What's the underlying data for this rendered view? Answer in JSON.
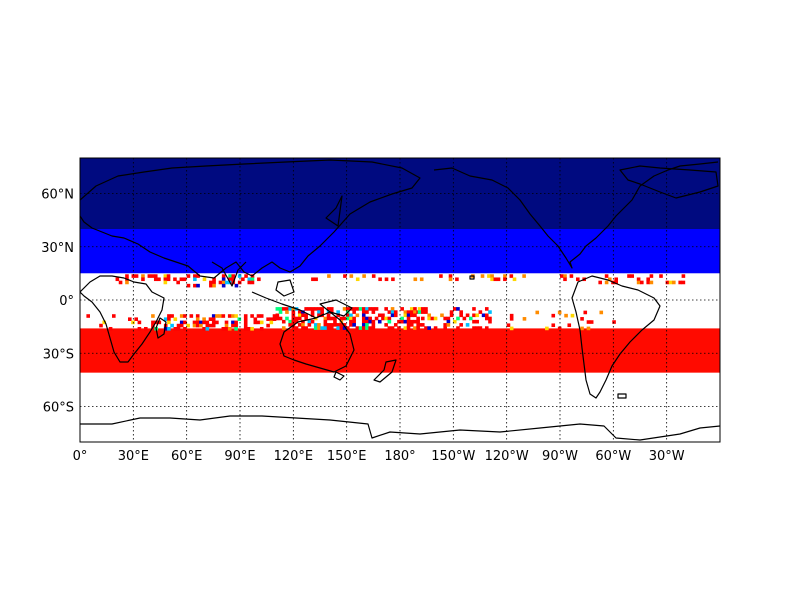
{
  "map": {
    "projection": "cylindrical",
    "lon_range": [
      0,
      360
    ],
    "lat_range": [
      -80,
      80
    ],
    "colors": {
      "polar_band": "#000a80",
      "mid_band": "#0000ff",
      "tropical_band": "#ffffff",
      "south_band": "#ff0a00",
      "coast": "#000000",
      "grid": "#000000",
      "scatter": [
        "#ff0000",
        "#ff8c00",
        "#ffd700",
        "#00bfff",
        "#0000cd",
        "#00ff7f"
      ]
    },
    "bands": [
      {
        "name": "polar-north",
        "lat_top": 80,
        "lat_bottom": 40,
        "color": "#000a80"
      },
      {
        "name": "mid-north",
        "lat_top": 40,
        "lat_bottom": 15,
        "color": "#0000ff"
      },
      {
        "name": "tropics",
        "lat_top": 15,
        "lat_bottom": -16,
        "color": "#ffffff"
      },
      {
        "name": "south-subtropics",
        "lat_top": -16,
        "lat_bottom": -41,
        "color": "#ff0a00"
      },
      {
        "name": "southern-ocean",
        "lat_top": -41,
        "lat_bottom": -80,
        "color": "#ffffff"
      }
    ],
    "lat_ticks": [
      {
        "lat": 60,
        "label": "60°N"
      },
      {
        "lat": 30,
        "label": "30°N"
      },
      {
        "lat": 0,
        "label": "0°"
      },
      {
        "lat": -30,
        "label": "30°S"
      },
      {
        "lat": -60,
        "label": "60°S"
      }
    ],
    "lon_ticks": [
      {
        "lon": 0,
        "label": "0°"
      },
      {
        "lon": 30,
        "label": "30°E"
      },
      {
        "lon": 60,
        "label": "60°E"
      },
      {
        "lon": 90,
        "label": "90°E"
      },
      {
        "lon": 120,
        "label": "120°E"
      },
      {
        "lon": 150,
        "label": "150°E"
      },
      {
        "lon": 180,
        "label": "180°"
      },
      {
        "lon": 210,
        "label": "150°W"
      },
      {
        "lon": 240,
        "label": "120°W"
      },
      {
        "lon": 270,
        "label": "90°W"
      },
      {
        "lon": 300,
        "label": "60°W"
      },
      {
        "lon": 330,
        "label": "30°W"
      }
    ]
  }
}
